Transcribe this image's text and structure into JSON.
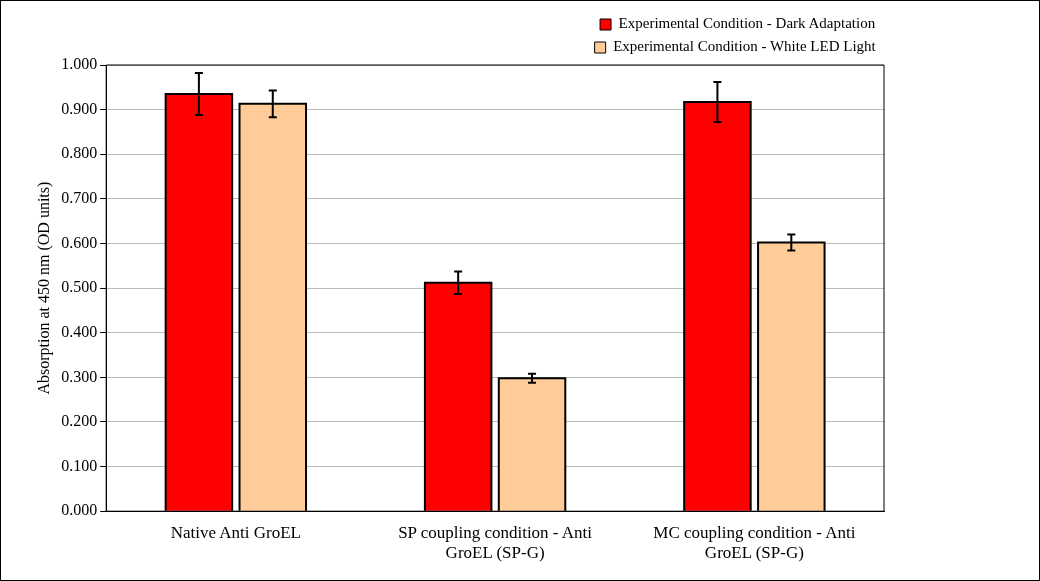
{
  "chart_data": {
    "type": "bar",
    "ylabel": "Absorption at 450 nm (OD units)",
    "categories": [
      "Native Anti GroEL",
      "SP coupling condition - Anti GroEL (SP-G)",
      "MC coupling condition - Anti GroEL (SP-G)"
    ],
    "series": [
      {
        "name": "Experimental Condition - Dark Adaptation",
        "color": "#ff0000",
        "values": [
          0.935,
          0.512,
          0.917
        ],
        "errors": [
          0.047,
          0.025,
          0.045
        ]
      },
      {
        "name": "Experimental Condition - White LED Light",
        "color": "#ffcc99",
        "values": [
          0.913,
          0.298,
          0.602
        ],
        "errors": [
          0.03,
          0.01,
          0.018
        ]
      }
    ],
    "ylim": [
      0,
      1
    ],
    "yticks": [
      {
        "value": 0,
        "label": "0.000"
      },
      {
        "value": 0.1,
        "label": "0.100"
      },
      {
        "value": 0.2,
        "label": "0.200"
      },
      {
        "value": 0.3,
        "label": "0.300"
      },
      {
        "value": 0.4,
        "label": "0.400"
      },
      {
        "value": 0.5,
        "label": "0.500"
      },
      {
        "value": 0.6,
        "label": "0.600"
      },
      {
        "value": 0.7,
        "label": "0.700"
      },
      {
        "value": 0.8,
        "label": "0.800"
      },
      {
        "value": 0.9,
        "label": "0.900"
      },
      {
        "value": 1,
        "label": "1.000"
      }
    ],
    "grid": "y",
    "legend": "top right"
  }
}
